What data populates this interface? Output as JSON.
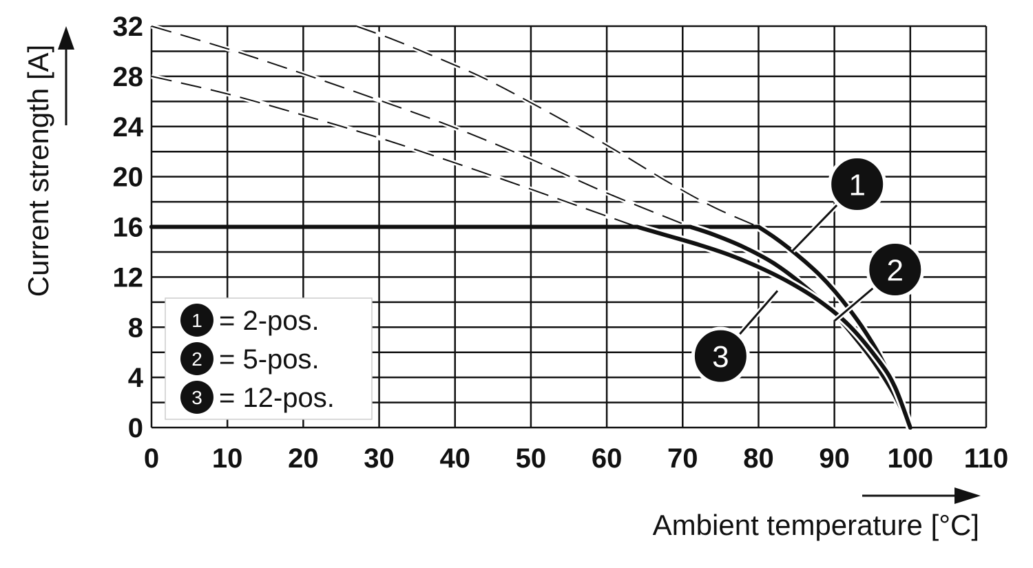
{
  "chart_data": {
    "type": "line",
    "xlabel": "Ambient temperature [°C]",
    "ylabel": "Current strength [A]",
    "xlim": [
      0,
      110
    ],
    "ylim": [
      0,
      32
    ],
    "x_ticks": [
      "0",
      "10",
      "20",
      "30",
      "40",
      "50",
      "60",
      "70",
      "80",
      "90",
      "100",
      "110"
    ],
    "y_ticks": [
      "0",
      "4",
      "8",
      "12",
      "16",
      "20",
      "24",
      "28",
      "32"
    ],
    "grid": true,
    "legend_position": "bottom-left",
    "series": [
      {
        "name": "2-pos.",
        "marker": "1",
        "x": [
          0,
          80,
          82,
          84,
          86,
          88,
          90,
          92,
          94,
          96,
          98,
          100
        ],
        "y": [
          16,
          16,
          15.2,
          14.3,
          13.3,
          12.2,
          10.9,
          9.4,
          7.7,
          5.7,
          3.2,
          0
        ],
        "derating_curve": {
          "x": [
            27,
            32,
            38,
            44,
            50,
            56,
            62,
            68,
            74,
            80
          ],
          "y": [
            32,
            30.9,
            29.4,
            27.8,
            25.9,
            23.9,
            21.8,
            19.6,
            17.6,
            16
          ]
        }
      },
      {
        "name": "5-pos.",
        "marker": "2",
        "x": [
          0,
          71,
          74,
          78,
          82,
          86,
          90,
          94,
          96,
          98,
          100
        ],
        "y": [
          16,
          16,
          15.4,
          14.4,
          13.1,
          11.3,
          9.1,
          6.2,
          4.5,
          2.5,
          0
        ],
        "derating_curve": {
          "x": [
            0,
            10,
            20,
            30,
            40,
            50,
            60,
            71
          ],
          "y": [
            32,
            30.2,
            28.2,
            26.1,
            23.9,
            21.4,
            18.7,
            16
          ]
        }
      },
      {
        "name": "12-pos.",
        "marker": "3",
        "x": [
          0,
          64,
          68,
          72,
          76,
          80,
          84,
          88,
          92,
          96,
          98,
          100
        ],
        "y": [
          16,
          16,
          15.3,
          14.6,
          13.8,
          12.8,
          11.6,
          10.1,
          8.1,
          5.2,
          3.2,
          0
        ],
        "derating_curve": {
          "x": [
            0,
            10,
            20,
            30,
            40,
            50,
            57,
            64
          ],
          "y": [
            28,
            26.6,
            24.9,
            23.1,
            21.1,
            19.0,
            17.5,
            16
          ]
        }
      }
    ],
    "legend": [
      {
        "marker": "1",
        "label": "= 2-pos."
      },
      {
        "marker": "2",
        "label": "= 5-pos."
      },
      {
        "marker": "3",
        "label": "= 12-pos."
      }
    ],
    "annotations": [
      {
        "marker": "1",
        "x": 93,
        "y": 19.4,
        "points_to": [
          84.5,
          14.1
        ]
      },
      {
        "marker": "2",
        "x": 98,
        "y": 12.6,
        "points_to": [
          90,
          8.5
        ]
      },
      {
        "marker": "3",
        "x": 75,
        "y": 5.7,
        "points_to": [
          82.5,
          10.9
        ]
      }
    ]
  }
}
